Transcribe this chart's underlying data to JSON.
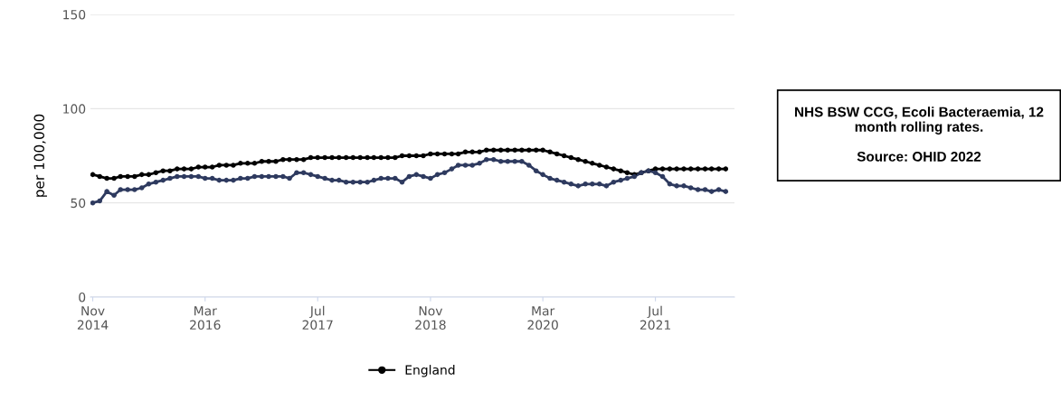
{
  "chart_data": {
    "type": "line",
    "ylabel": "per 100,000",
    "annotations": [
      "NHS BSW CCG, Ecoli Bacteraemia, 12 month rolling rates.\n\nSource: OHID 2022"
    ],
    "xlim": [
      "2014-10-22",
      "2022-06-08"
    ],
    "ylim": [
      0,
      150
    ],
    "yticks": [
      0,
      50,
      100,
      150
    ],
    "xticks": [
      {
        "value": "2014-11",
        "label": "Nov\n2014"
      },
      {
        "value": "2016-03",
        "label": "Mar\n2016"
      },
      {
        "value": "2017-07",
        "label": "Jul\n2017"
      },
      {
        "value": "2018-11",
        "label": "Nov\n2018"
      },
      {
        "value": "2020-03",
        "label": "Mar\n2020"
      },
      {
        "value": "2021-07",
        "label": "Jul\n2021"
      }
    ],
    "grid": "y",
    "legend": "bottom",
    "marker": "circle",
    "line_style": "solid",
    "x": [
      "2014-11",
      "2014-12",
      "2015-01",
      "2015-02",
      "2015-03",
      "2015-04",
      "2015-05",
      "2015-06",
      "2015-07",
      "2015-08",
      "2015-09",
      "2015-10",
      "2015-11",
      "2015-12",
      "2016-01",
      "2016-02",
      "2016-03",
      "2016-04",
      "2016-05",
      "2016-06",
      "2016-07",
      "2016-08",
      "2016-09",
      "2016-10",
      "2016-11",
      "2016-12",
      "2017-01",
      "2017-02",
      "2017-03",
      "2017-04",
      "2017-05",
      "2017-06",
      "2017-07",
      "2017-08",
      "2017-09",
      "2017-10",
      "2017-11",
      "2017-12",
      "2018-01",
      "2018-02",
      "2018-03",
      "2018-04",
      "2018-05",
      "2018-06",
      "2018-07",
      "2018-08",
      "2018-09",
      "2018-10",
      "2018-11",
      "2018-12",
      "2019-01",
      "2019-02",
      "2019-03",
      "2019-04",
      "2019-05",
      "2019-06",
      "2019-07",
      "2019-08",
      "2019-09",
      "2019-10",
      "2019-11",
      "2019-12",
      "2020-01",
      "2020-02",
      "2020-03",
      "2020-04",
      "2020-05",
      "2020-06",
      "2020-07",
      "2020-08",
      "2020-09",
      "2020-10",
      "2020-11",
      "2020-12",
      "2021-01",
      "2021-02",
      "2021-03",
      "2021-04",
      "2021-05",
      "2021-06",
      "2021-07",
      "2021-08",
      "2021-09",
      "2021-10",
      "2021-11",
      "2021-12",
      "2022-01",
      "2022-02",
      "2022-03",
      "2022-04",
      "2022-05"
    ],
    "series": [
      {
        "name": "England",
        "color": "#000000",
        "values": [
          65,
          64,
          63,
          63,
          64,
          64,
          64,
          65,
          65,
          66,
          67,
          67,
          68,
          68,
          68,
          69,
          69,
          69,
          70,
          70,
          70,
          71,
          71,
          71,
          72,
          72,
          72,
          73,
          73,
          73,
          73,
          74,
          74,
          74,
          74,
          74,
          74,
          74,
          74,
          74,
          74,
          74,
          74,
          74,
          75,
          75,
          75,
          75,
          76,
          76,
          76,
          76,
          76,
          77,
          77,
          77,
          78,
          78,
          78,
          78,
          78,
          78,
          78,
          78,
          78,
          77,
          76,
          75,
          74,
          73,
          72,
          71,
          70,
          69,
          68,
          67,
          66,
          65,
          66,
          67,
          68,
          68,
          68,
          68,
          68,
          68,
          68,
          68,
          68,
          68,
          68
        ]
      },
      {
        "color": "#2e3a5f",
        "values": [
          50,
          51,
          56,
          54,
          57,
          57,
          57,
          58,
          60,
          61,
          62,
          63,
          64,
          64,
          64,
          64,
          63,
          63,
          62,
          62,
          62,
          63,
          63,
          64,
          64,
          64,
          64,
          64,
          63,
          66,
          66,
          65,
          64,
          63,
          62,
          62,
          61,
          61,
          61,
          61,
          62,
          63,
          63,
          63,
          61,
          64,
          65,
          64,
          63,
          65,
          66,
          68,
          70,
          70,
          70,
          71,
          73,
          73,
          72,
          72,
          72,
          72,
          70,
          67,
          65,
          63,
          62,
          61,
          60,
          59,
          60,
          60,
          60,
          59,
          61,
          62,
          63,
          64,
          66,
          67,
          66,
          64,
          60,
          59,
          59,
          58,
          57,
          57,
          56,
          57,
          56
        ]
      }
    ]
  }
}
